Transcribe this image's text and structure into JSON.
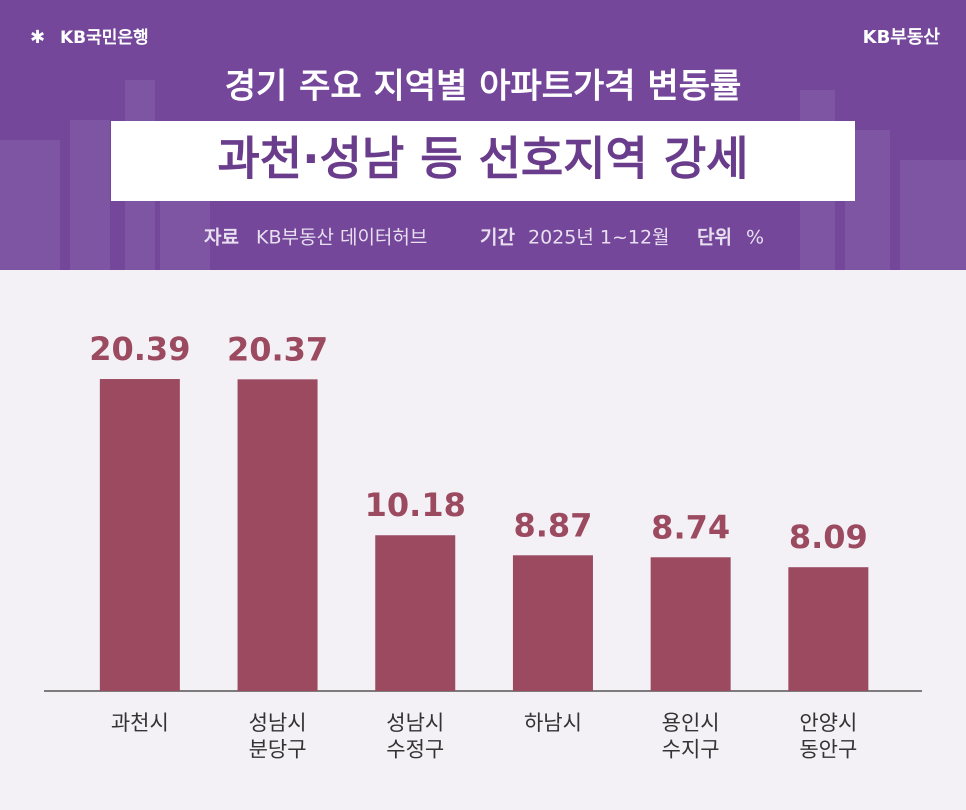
{
  "header": {
    "logo_left": "KB국민은행",
    "logo_right": "KB부동산",
    "title": "경기 주요 지역별 아파트가격 변동률",
    "subtitle": "과천·성남 등 선호지역 강세",
    "source_label": "자료",
    "source": "KB부동산 데이터허브",
    "period_label": "기간",
    "period": "2025년 1~12월",
    "unit_label": "단위",
    "unit": "%"
  },
  "chart_data": {
    "type": "bar",
    "categories": [
      "과천시",
      "성남시\n분당구",
      "성남시\n수정구",
      "하남시",
      "용인시\n수지구",
      "안양시\n동안구"
    ],
    "values": [
      20.39,
      20.37,
      10.18,
      8.87,
      8.74,
      8.09
    ],
    "color": "#9b4a60"
  }
}
